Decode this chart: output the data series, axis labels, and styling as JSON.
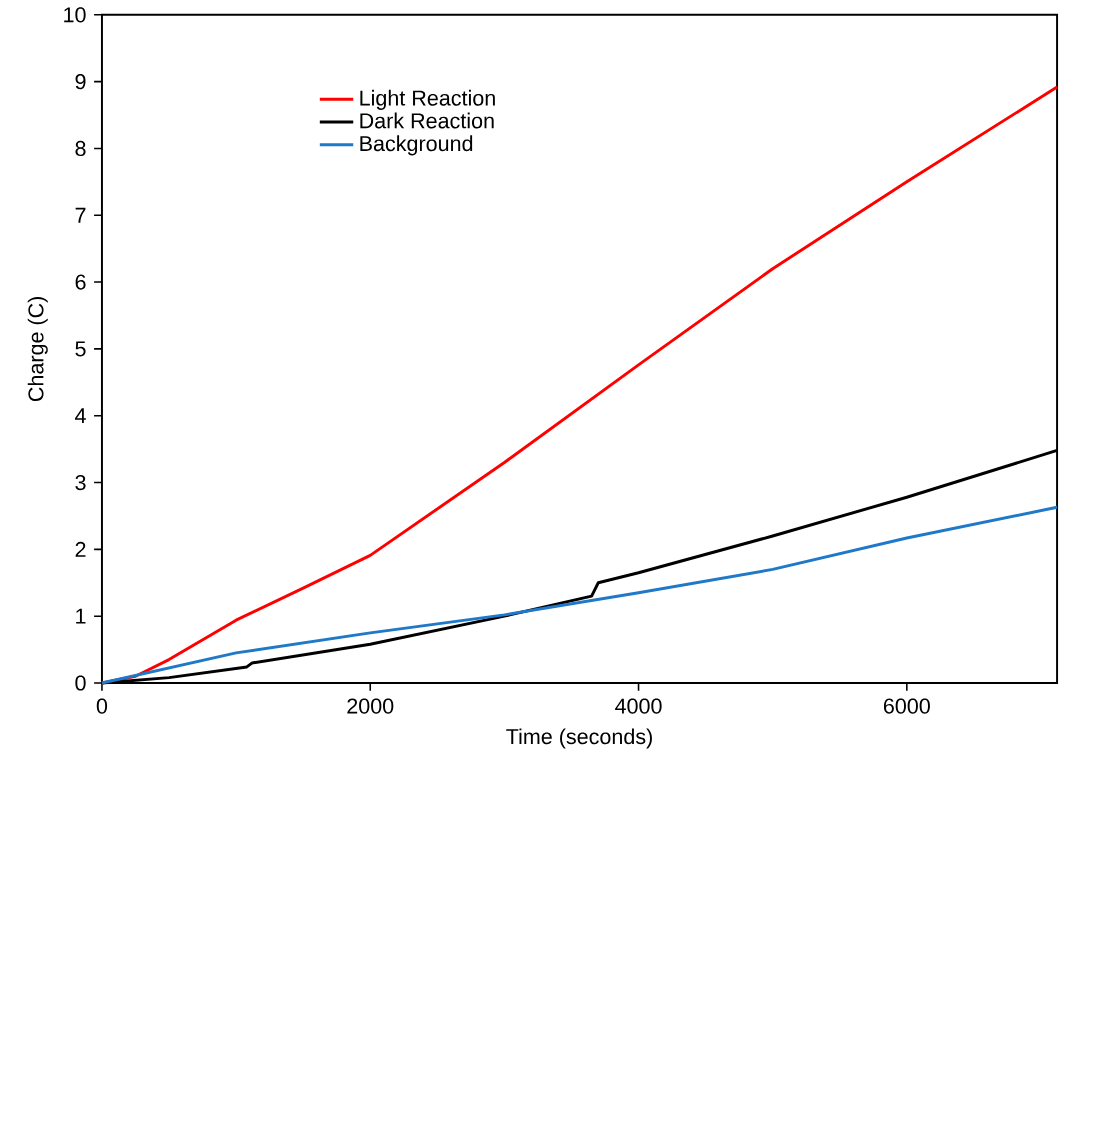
{
  "chart_data": {
    "type": "line",
    "xlabel": "Time (seconds)",
    "ylabel": "Charge (C)",
    "xlim": [
      0,
      7120
    ],
    "ylim": [
      0,
      10
    ],
    "xticks": [
      0,
      2000,
      4000,
      6000
    ],
    "yticks": [
      0,
      1,
      2,
      3,
      4,
      5,
      6,
      7,
      8,
      9,
      10
    ],
    "grid": false,
    "legend": "top left",
    "marker": "none",
    "line_style": "solid",
    "series": [
      {
        "name": "Light Reaction",
        "color": "#ff0000",
        "x": [
          0,
          250,
          500,
          1000,
          1500,
          2000,
          3000,
          4000,
          5000,
          6000,
          7120
        ],
        "values": [
          0,
          0.1,
          0.35,
          0.94,
          1.42,
          1.91,
          3.3,
          4.76,
          6.2,
          7.5,
          8.92
        ]
      },
      {
        "name": "Dark Reaction",
        "color": "#000000",
        "x": [
          0,
          500,
          1080,
          1120,
          2000,
          3000,
          3650,
          3700,
          4000,
          5000,
          6000,
          7120
        ],
        "values": [
          0,
          0.08,
          0.24,
          0.3,
          0.58,
          1.0,
          1.3,
          1.5,
          1.65,
          2.2,
          2.78,
          3.48
        ]
      },
      {
        "name": "Background",
        "color": "#1f78c8",
        "x": [
          0,
          1000,
          2000,
          3000,
          4000,
          5000,
          6000,
          7120
        ],
        "values": [
          0,
          0.45,
          0.75,
          1.02,
          1.35,
          1.7,
          2.17,
          2.63
        ]
      }
    ]
  }
}
